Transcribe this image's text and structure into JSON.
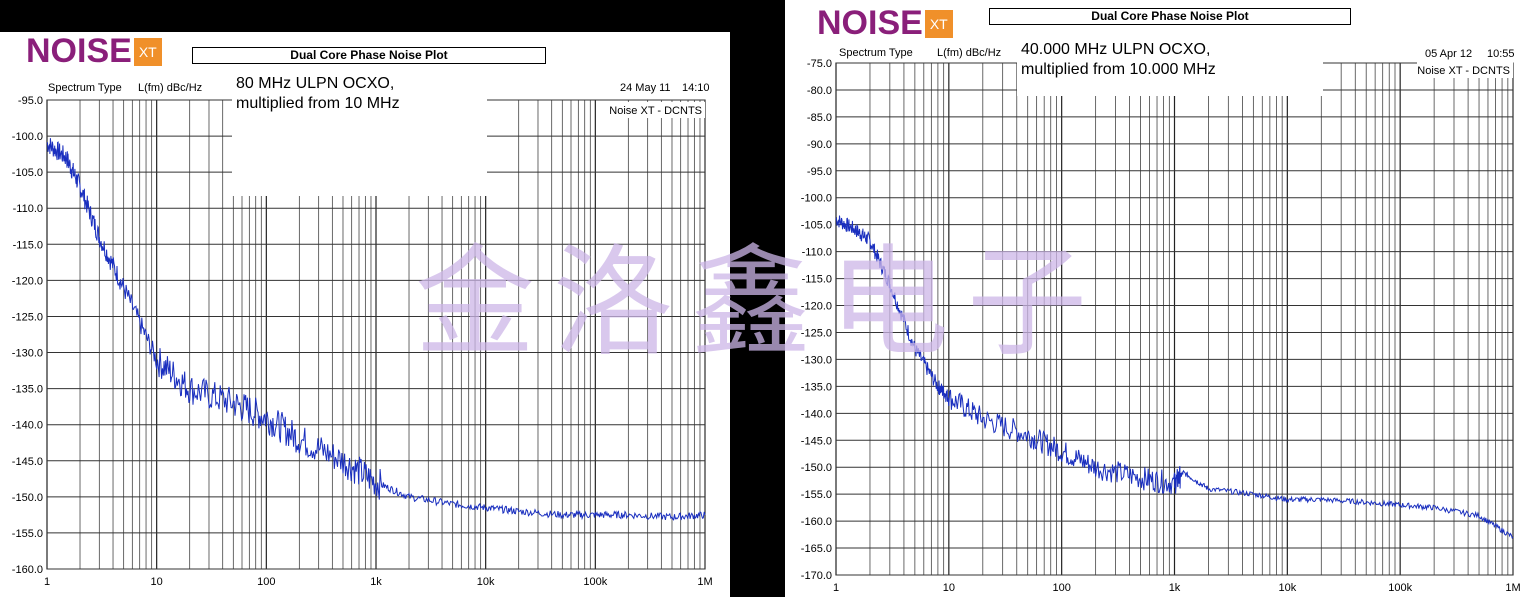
{
  "brand": {
    "word": "NOISE",
    "badge": "XT",
    "word_color": "#8a1f7a",
    "badge_color": "#f0902a"
  },
  "watermark": "金洛鑫电子",
  "trace_color": "#1a2fbf",
  "chart_data": [
    {
      "type": "line",
      "title": "Dual Core Phase Noise Plot",
      "annotation": "80 MHz ULPN OCXO,\nmultiplied from 10 MHz",
      "spectrum_type_label": "Spectrum Type",
      "ylabel": "L(fm) dBc/Hz",
      "date": "24 May 11",
      "time": "14:10",
      "instrument": "Noise XT - DCNTS",
      "xscale": "log",
      "xlim": [
        1,
        1000000
      ],
      "ylim": [
        -160,
        -95
      ],
      "y_ticks": [
        "-95.0",
        "-100.0",
        "-105.0",
        "-110.0",
        "-115.0",
        "-120.0",
        "-125.0",
        "-130.0",
        "-135.0",
        "-140.0",
        "-145.0",
        "-150.0",
        "-155.0",
        "-160.0"
      ],
      "x_ticks": [
        "1",
        "10",
        "100",
        "1k",
        "10k",
        "100k",
        "1M"
      ],
      "grid": true,
      "series": [
        {
          "x": [
            1,
            1.5,
            2,
            3,
            5,
            10,
            20,
            50,
            100,
            200,
            500,
            1000,
            2000,
            5000,
            10000,
            20000,
            50000,
            100000,
            200000,
            500000,
            1000000
          ],
          "y": [
            -101,
            -103,
            -107,
            -114,
            -121,
            -131,
            -135,
            -137,
            -139,
            -142,
            -145,
            -148,
            -150,
            -151,
            -151.5,
            -152,
            -152.5,
            -152.5,
            -152.5,
            -152.8,
            -152.5
          ]
        }
      ]
    },
    {
      "type": "line",
      "title": "Dual Core Phase Noise Plot",
      "annotation": "40.000 MHz ULPN OCXO,\nmultiplied from 10.000 MHz",
      "spectrum_type_label": "Spectrum Type",
      "ylabel": "L(fm) dBc/Hz",
      "date": "05 Apr 12",
      "time": "10:55",
      "instrument": "Noise XT - DCNTS",
      "xscale": "log",
      "xlim": [
        1,
        1000000
      ],
      "ylim": [
        -170,
        -75
      ],
      "y_ticks": [
        "-75.0",
        "-80.0",
        "-85.0",
        "-90.0",
        "-95.0",
        "-100.0",
        "-105.0",
        "-110.0",
        "-115.0",
        "-120.0",
        "-125.0",
        "-130.0",
        "-135.0",
        "-140.0",
        "-145.0",
        "-150.0",
        "-155.0",
        "-160.0",
        "-165.0",
        "-170.0"
      ],
      "x_ticks": [
        "1",
        "10",
        "100",
        "1k",
        "10k",
        "100k",
        "1M"
      ],
      "grid": true,
      "series": [
        {
          "x": [
            1,
            1.5,
            2,
            3,
            5,
            8,
            10,
            20,
            50,
            100,
            200,
            500,
            1000,
            1200,
            2000,
            5000,
            10000,
            20000,
            50000,
            100000,
            200000,
            500000,
            1000000
          ],
          "y": [
            -104,
            -106,
            -108,
            -116,
            -128,
            -135,
            -137,
            -141,
            -144,
            -147,
            -150,
            -152,
            -153,
            -151,
            -154,
            -155,
            -156,
            -156,
            -156.5,
            -157,
            -157.5,
            -159,
            -163
          ]
        }
      ]
    }
  ]
}
